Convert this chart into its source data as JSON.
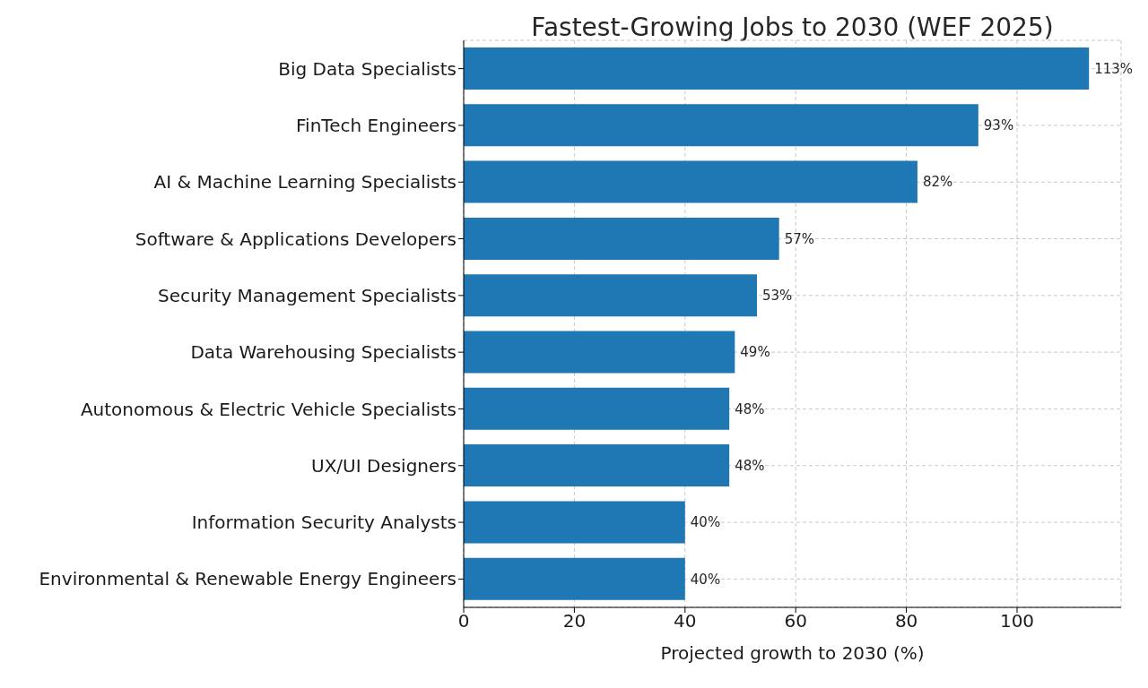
{
  "chart_data": {
    "type": "bar",
    "orientation": "horizontal",
    "title": "Fastest-Growing Jobs to 2030 (WEF 2025)",
    "xlabel": "Projected growth to 2030 (%)",
    "categories": [
      "Big Data Specialists",
      "FinTech Engineers",
      "AI & Machine Learning Specialists",
      "Software & Applications Developers",
      "Security Management Specialists",
      "Data Warehousing Specialists",
      "Autonomous & Electric Vehicle Specialists",
      "UX/UI Designers",
      "Information Security Analysts",
      "Environmental & Renewable Energy Engineers"
    ],
    "values": [
      113,
      93,
      82,
      57,
      53,
      49,
      48,
      48,
      40,
      40
    ],
    "value_labels": [
      "113%",
      "93%",
      "82%",
      "57%",
      "53%",
      "49%",
      "48%",
      "48%",
      "40%",
      "40%"
    ],
    "color": "#1f77b4",
    "xlim": [
      0,
      118.8
    ],
    "xticks": [
      0,
      20,
      40,
      60,
      80,
      100
    ],
    "grid": true
  }
}
